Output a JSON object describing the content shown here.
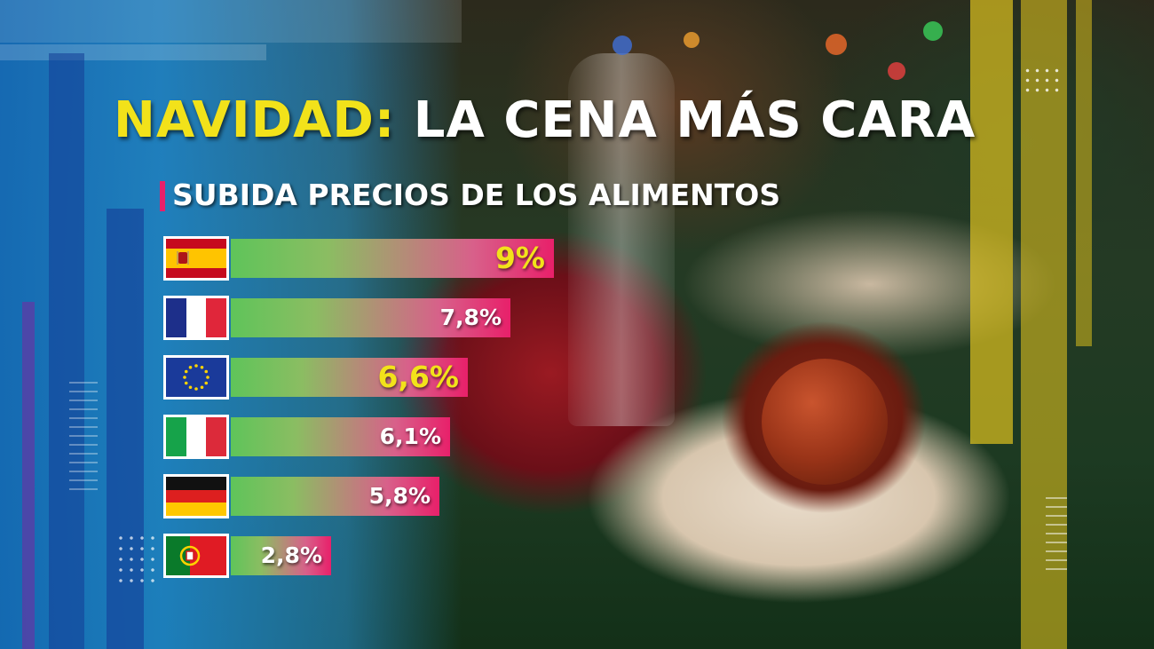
{
  "header": {
    "title_highlight": "NAVIDAD:",
    "title_rest": "LA CENA MÁS CARA",
    "subtitle": "SUBIDA PRECIOS DE LOS ALIMENTOS"
  },
  "colors": {
    "title_highlight": "#f2e21a",
    "subtitle_accent": "#e8206a",
    "bar_start": "#5fc45a",
    "bar_end": "#e8206a",
    "label_highlight": "#f2e21a",
    "label_default": "#ffffff"
  },
  "chart_data": {
    "type": "bar",
    "orientation": "horizontal",
    "categories": [
      "España",
      "Francia",
      "Unión Europea",
      "Italia",
      "Alemania",
      "Portugal"
    ],
    "icons": [
      "spain-flag-icon",
      "france-flag-icon",
      "eu-flag-icon",
      "italy-flag-icon",
      "germany-flag-icon",
      "portugal-flag-icon"
    ],
    "values": [
      9,
      7.8,
      6.6,
      6.1,
      5.8,
      2.8
    ],
    "labels": [
      "9%",
      "7,8%",
      "6,6%",
      "6,1%",
      "5,8%",
      "2,8%"
    ],
    "highlighted": [
      true,
      false,
      true,
      false,
      false,
      false
    ],
    "unit": "%",
    "xlim": [
      0,
      9
    ]
  }
}
